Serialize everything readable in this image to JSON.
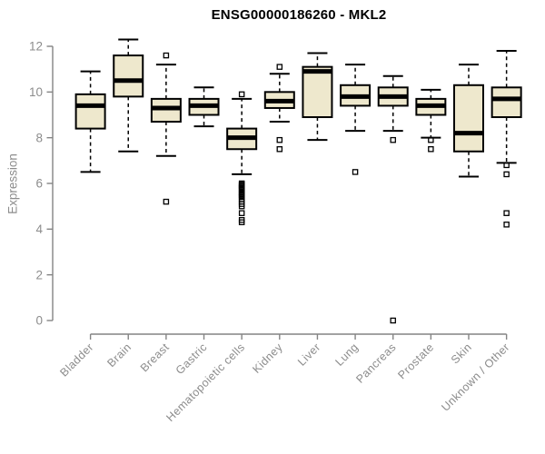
{
  "title": "ENSG00000186260 - MKL2",
  "colors": {
    "box_fill": "#EEE8CD",
    "box_stroke": "#000000",
    "median_color": "#000000",
    "axis_line": "#848484",
    "axis_text": "#8c8c8c",
    "title_color": "#000000",
    "background": "#ffffff"
  },
  "chart_data": {
    "type": "boxplot",
    "title": "ENSG00000186260 - MKL2",
    "xlabel": "",
    "ylabel": "Expression",
    "ylim": [
      0,
      12.5
    ],
    "yticks": [
      0,
      2,
      4,
      6,
      8,
      10,
      12
    ],
    "grid": false,
    "legend": "none",
    "x_tick_rotation": 45,
    "categories": [
      "Bladder",
      "Brain",
      "Breast",
      "Gastric",
      "Hematopoietic cells",
      "Kidney",
      "Liver",
      "Lung",
      "Pancreas",
      "Prostate",
      "Skin",
      "Unknown / Other"
    ],
    "series": [
      {
        "name": "Bladder",
        "low": 6.5,
        "q1": 8.4,
        "median": 9.4,
        "q3": 9.9,
        "high": 10.9,
        "outliers": []
      },
      {
        "name": "Brain",
        "low": 7.4,
        "q1": 9.8,
        "median": 10.5,
        "q3": 11.6,
        "high": 12.3,
        "outliers": []
      },
      {
        "name": "Breast",
        "low": 7.2,
        "q1": 8.7,
        "median": 9.3,
        "q3": 9.7,
        "high": 11.2,
        "outliers": [
          11.6,
          5.2
        ]
      },
      {
        "name": "Gastric",
        "low": 8.5,
        "q1": 9.0,
        "median": 9.4,
        "q3": 9.7,
        "high": 10.2,
        "outliers": []
      },
      {
        "name": "Hematopoietic cells",
        "low": 6.4,
        "q1": 7.5,
        "median": 8.0,
        "q3": 8.4,
        "high": 9.7,
        "outliers": [
          9.9,
          6.0,
          5.95,
          5.9,
          5.85,
          5.8,
          5.75,
          5.7,
          5.6,
          5.55,
          5.5,
          5.45,
          5.4,
          5.3,
          5.2,
          5.1,
          5.0,
          4.7,
          4.4,
          4.3
        ]
      },
      {
        "name": "Kidney",
        "low": 8.7,
        "q1": 9.3,
        "median": 9.6,
        "q3": 10.0,
        "high": 10.8,
        "outliers": [
          11.1,
          7.9,
          7.5
        ]
      },
      {
        "name": "Liver",
        "low": 7.9,
        "q1": 8.9,
        "median": 10.9,
        "q3": 11.1,
        "high": 11.7,
        "outliers": []
      },
      {
        "name": "Lung",
        "low": 8.3,
        "q1": 9.4,
        "median": 9.8,
        "q3": 10.3,
        "high": 11.2,
        "outliers": [
          6.5
        ]
      },
      {
        "name": "Pancreas",
        "low": 8.3,
        "q1": 9.4,
        "median": 9.8,
        "q3": 10.2,
        "high": 10.7,
        "outliers": [
          7.9,
          0.0
        ]
      },
      {
        "name": "Prostate",
        "low": 8.0,
        "q1": 9.0,
        "median": 9.4,
        "q3": 9.7,
        "high": 10.1,
        "outliers": [
          7.9,
          7.5
        ]
      },
      {
        "name": "Skin",
        "low": 6.3,
        "q1": 7.4,
        "median": 8.2,
        "q3": 10.3,
        "high": 11.2,
        "outliers": []
      },
      {
        "name": "Unknown / Other",
        "low": 6.9,
        "q1": 8.9,
        "median": 9.7,
        "q3": 10.2,
        "high": 11.8,
        "outliers": [
          6.8,
          6.4,
          4.7,
          4.2
        ]
      }
    ]
  }
}
